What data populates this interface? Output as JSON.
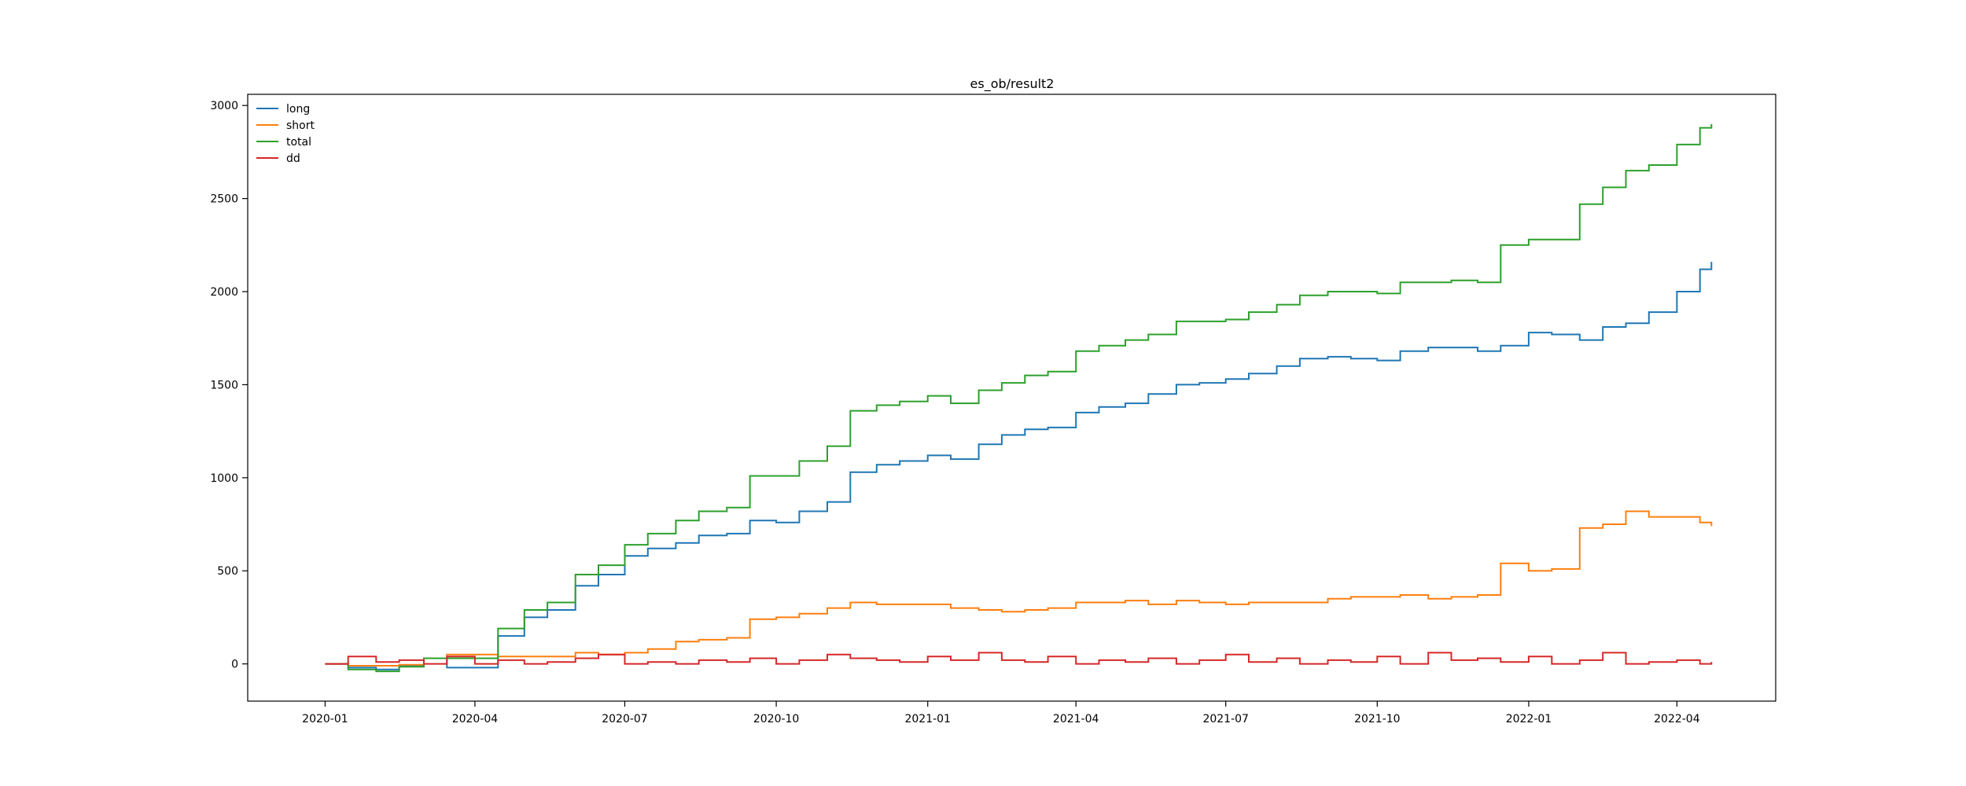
{
  "chart_data": {
    "type": "line",
    "step": true,
    "title": "es_ob/result2",
    "xlabel": "",
    "ylabel": "",
    "x_axis": "date",
    "xlim": [
      "2019-11-15",
      "2022-05-31"
    ],
    "ylim": [
      -200,
      3060
    ],
    "x_ticks": [
      "2020-01",
      "2020-04",
      "2020-07",
      "2020-10",
      "2021-01",
      "2021-04",
      "2021-07",
      "2021-10",
      "2022-01",
      "2022-04"
    ],
    "y_ticks": [
      0,
      500,
      1000,
      1500,
      2000,
      2500,
      3000
    ],
    "grid": false,
    "legend": "top-left",
    "x": [
      "2020-01-01",
      "2020-01-15",
      "2020-02-01",
      "2020-02-15",
      "2020-03-01",
      "2020-03-15",
      "2020-04-01",
      "2020-04-15",
      "2020-05-01",
      "2020-05-15",
      "2020-06-01",
      "2020-06-15",
      "2020-07-01",
      "2020-07-15",
      "2020-08-01",
      "2020-08-15",
      "2020-09-01",
      "2020-09-15",
      "2020-10-01",
      "2020-10-15",
      "2020-11-01",
      "2020-11-15",
      "2020-12-01",
      "2020-12-15",
      "2021-01-01",
      "2021-01-15",
      "2021-02-01",
      "2021-02-15",
      "2021-03-01",
      "2021-03-15",
      "2021-04-01",
      "2021-04-15",
      "2021-05-01",
      "2021-05-15",
      "2021-06-01",
      "2021-06-15",
      "2021-07-01",
      "2021-07-15",
      "2021-08-01",
      "2021-08-15",
      "2021-09-01",
      "2021-09-15",
      "2021-10-01",
      "2021-10-15",
      "2021-11-01",
      "2021-11-15",
      "2021-12-01",
      "2021-12-15",
      "2022-01-01",
      "2022-01-15",
      "2022-02-01",
      "2022-02-15",
      "2022-03-01",
      "2022-03-15",
      "2022-04-01",
      "2022-04-15",
      "2022-04-22"
    ],
    "series": [
      {
        "name": "long",
        "color": "#1f77b4",
        "values": [
          0,
          -20,
          -30,
          -10,
          30,
          -20,
          -20,
          150,
          250,
          290,
          420,
          480,
          580,
          620,
          650,
          690,
          700,
          770,
          760,
          820,
          870,
          1030,
          1070,
          1090,
          1120,
          1100,
          1180,
          1230,
          1260,
          1270,
          1350,
          1380,
          1400,
          1450,
          1500,
          1510,
          1530,
          1560,
          1600,
          1640,
          1650,
          1640,
          1630,
          1680,
          1700,
          1700,
          1680,
          1710,
          1780,
          1770,
          1740,
          1810,
          1830,
          1890,
          2000,
          2120,
          2160
        ]
      },
      {
        "name": "short",
        "color": "#ff7f0e",
        "values": [
          0,
          -10,
          -10,
          -5,
          30,
          50,
          50,
          40,
          40,
          40,
          60,
          50,
          60,
          80,
          120,
          130,
          140,
          240,
          250,
          270,
          300,
          330,
          320,
          320,
          320,
          300,
          290,
          280,
          290,
          300,
          330,
          330,
          340,
          320,
          340,
          330,
          320,
          330,
          330,
          330,
          350,
          360,
          360,
          370,
          350,
          360,
          370,
          540,
          500,
          510,
          730,
          750,
          820,
          790,
          790,
          760,
          740
        ]
      },
      {
        "name": "total",
        "color": "#2ca02c",
        "values": [
          0,
          -30,
          -40,
          -15,
          30,
          30,
          30,
          190,
          290,
          330,
          480,
          530,
          640,
          700,
          770,
          820,
          840,
          1010,
          1010,
          1090,
          1170,
          1360,
          1390,
          1410,
          1440,
          1400,
          1470,
          1510,
          1550,
          1570,
          1680,
          1710,
          1740,
          1770,
          1840,
          1840,
          1850,
          1890,
          1930,
          1980,
          2000,
          2000,
          1990,
          2050,
          2050,
          2060,
          2050,
          2250,
          2280,
          2280,
          2470,
          2560,
          2650,
          2680,
          2790,
          2880,
          2900
        ]
      },
      {
        "name": "dd",
        "color": "#d62728",
        "values": [
          0,
          40,
          10,
          20,
          0,
          40,
          0,
          20,
          0,
          10,
          30,
          50,
          0,
          10,
          0,
          20,
          10,
          30,
          0,
          20,
          50,
          30,
          20,
          10,
          40,
          20,
          60,
          20,
          10,
          40,
          0,
          20,
          10,
          30,
          0,
          20,
          50,
          10,
          30,
          0,
          20,
          10,
          40,
          0,
          60,
          20,
          30,
          10,
          40,
          0,
          20,
          60,
          0,
          10,
          20,
          0,
          10
        ]
      }
    ]
  }
}
